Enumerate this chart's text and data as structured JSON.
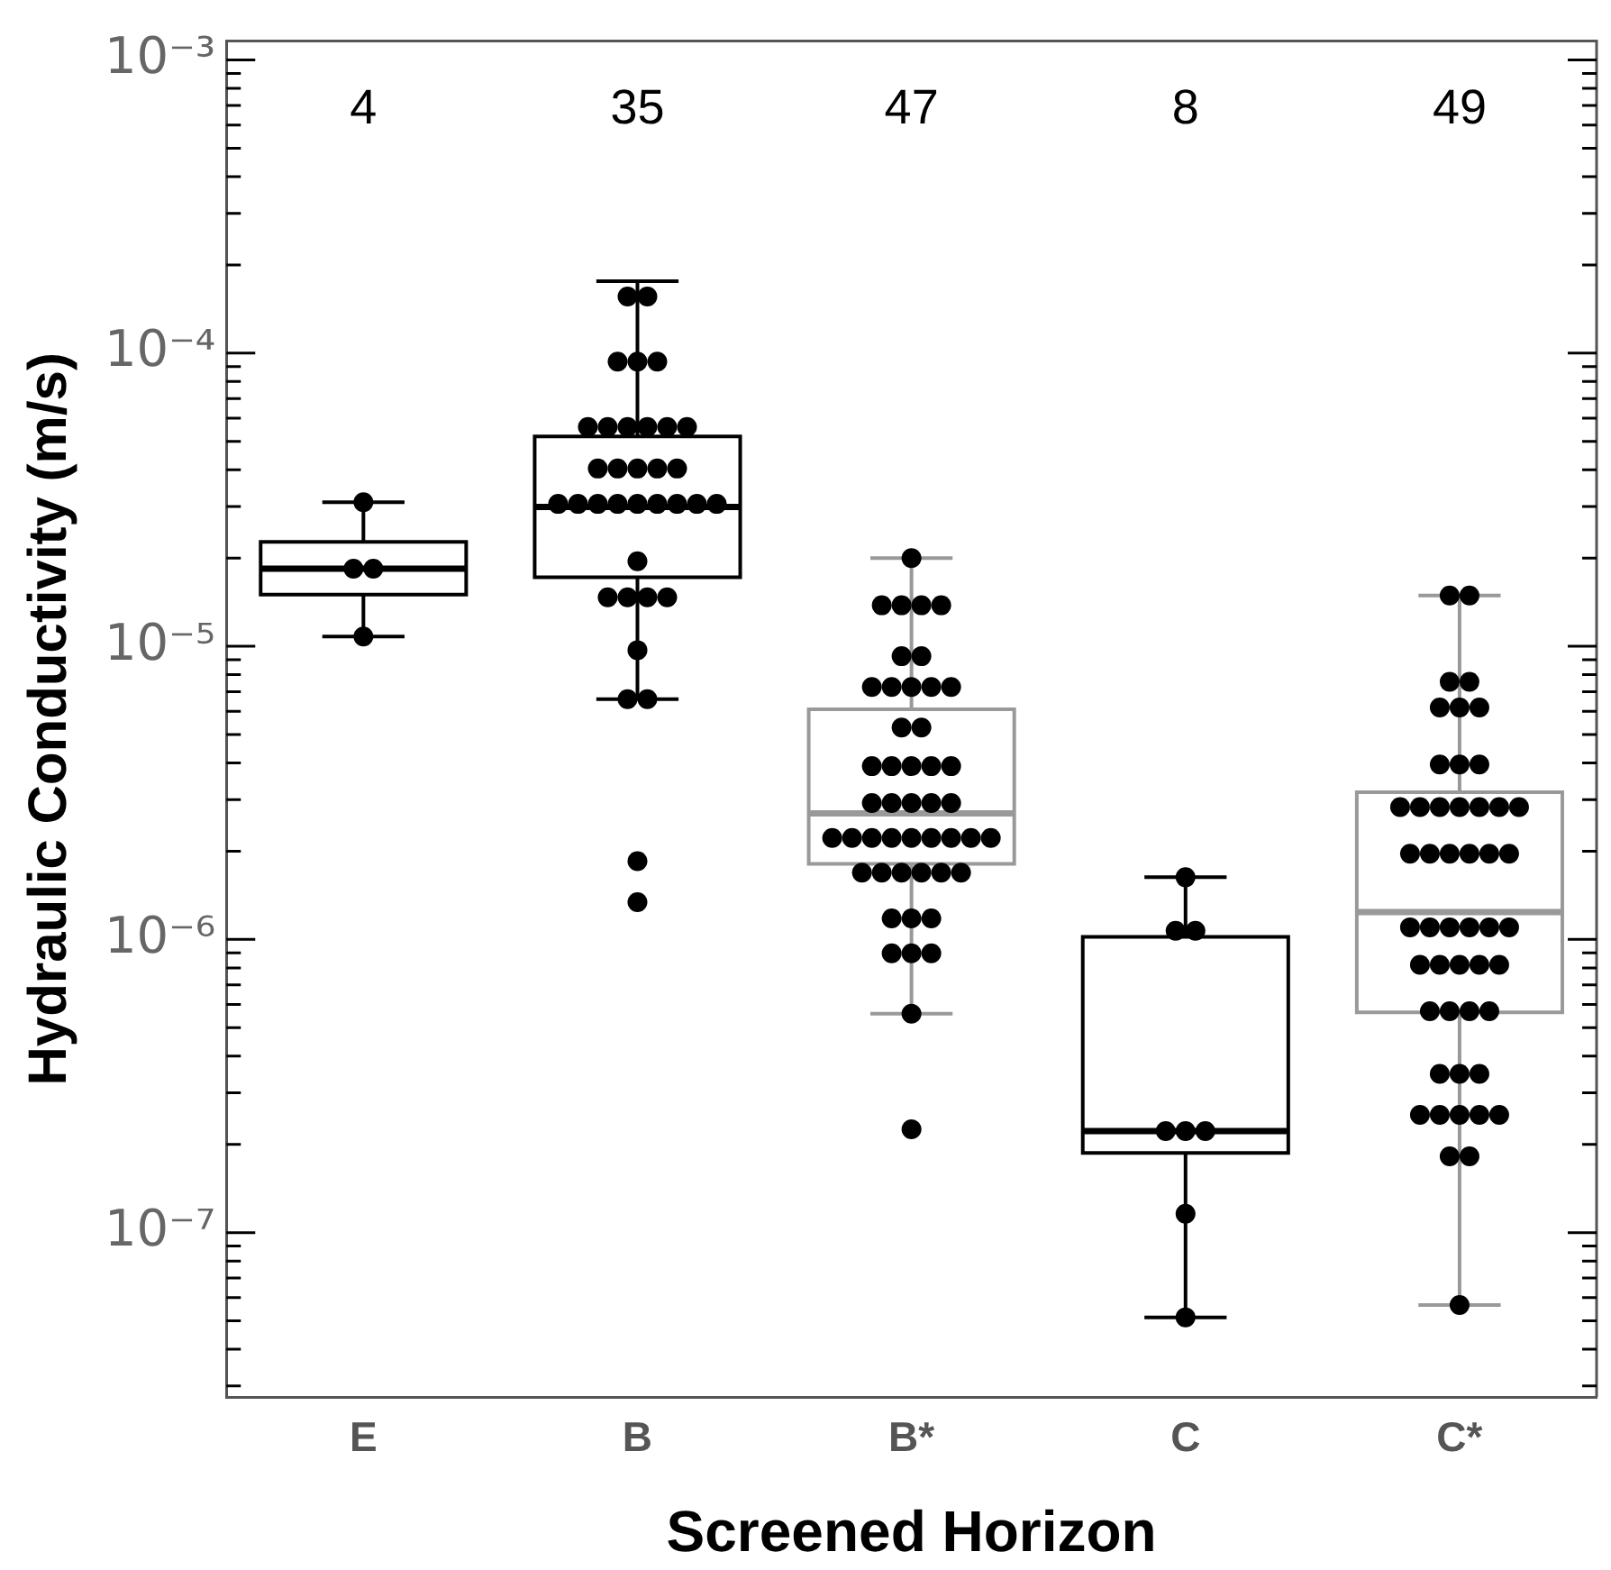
{
  "chart_data": {
    "type": "box",
    "xlabel": "Screened Horizon",
    "ylabel": "Hydraulic Conductivity (m/s)",
    "categories": [
      "E",
      "B",
      "B*",
      "C",
      "C*"
    ],
    "log": true,
    "ylim": [
      2.75e-08,
      0.00116
    ],
    "yticks": [
      {
        "value": 3e-08,
        "label": null
      },
      {
        "value": 4e-08,
        "label": null
      },
      {
        "value": 5e-08,
        "label": null
      },
      {
        "value": 6e-08,
        "label": null
      },
      {
        "value": 7e-08,
        "label": null
      },
      {
        "value": 8e-08,
        "label": null
      },
      {
        "value": 9e-08,
        "label": null
      },
      {
        "value": 1e-07,
        "label": "10⁻⁷"
      },
      {
        "value": 2e-07,
        "label": null
      },
      {
        "value": 3e-07,
        "label": null
      },
      {
        "value": 4e-07,
        "label": null
      },
      {
        "value": 5e-07,
        "label": null
      },
      {
        "value": 6e-07,
        "label": null
      },
      {
        "value": 7e-07,
        "label": null
      },
      {
        "value": 8e-07,
        "label": null
      },
      {
        "value": 9e-07,
        "label": null
      },
      {
        "value": 1e-06,
        "label": "10⁻⁶"
      },
      {
        "value": 2e-06,
        "label": null
      },
      {
        "value": 3e-06,
        "label": null
      },
      {
        "value": 4e-06,
        "label": null
      },
      {
        "value": 5e-06,
        "label": null
      },
      {
        "value": 6e-06,
        "label": null
      },
      {
        "value": 7e-06,
        "label": null
      },
      {
        "value": 8e-06,
        "label": null
      },
      {
        "value": 9e-06,
        "label": null
      },
      {
        "value": 1e-05,
        "label": "10⁻⁵"
      },
      {
        "value": 2e-05,
        "label": null
      },
      {
        "value": 3e-05,
        "label": null
      },
      {
        "value": 4e-05,
        "label": null
      },
      {
        "value": 5e-05,
        "label": null
      },
      {
        "value": 6e-05,
        "label": null
      },
      {
        "value": 7e-05,
        "label": null
      },
      {
        "value": 8e-05,
        "label": null
      },
      {
        "value": 9e-05,
        "label": null
      },
      {
        "value": 0.0001,
        "label": "10⁻⁴"
      },
      {
        "value": 0.0002,
        "label": null
      },
      {
        "value": 0.0003,
        "label": null
      },
      {
        "value": 0.0004,
        "label": null
      },
      {
        "value": 0.0005,
        "label": null
      },
      {
        "value": 0.0006,
        "label": null
      },
      {
        "value": 0.0007,
        "label": null
      },
      {
        "value": 0.0008,
        "label": null
      },
      {
        "value": 0.0009,
        "label": null
      },
      {
        "value": 0.001,
        "label": "10⁻³"
      }
    ],
    "series": [
      {
        "type": "box",
        "colors": [
          "#000000",
          "#000000",
          "#999999",
          "#000000",
          "#999999"
        ],
        "boxes": [
          {
            "low": 1.08e-05,
            "q1": 1.5e-05,
            "median": 1.84e-05,
            "q3": 2.27e-05,
            "high": 3.1e-05
          },
          {
            "low": 6.6e-06,
            "q1": 1.72e-05,
            "median": 2.99e-05,
            "q3": 5.2e-05,
            "high": 0.000176
          },
          {
            "low": 5.58e-07,
            "q1": 1.81e-06,
            "median": 2.69e-06,
            "q3": 6.1e-06,
            "high": 2e-05
          },
          {
            "low": 5.14e-08,
            "q1": 1.87e-07,
            "median": 2.22e-07,
            "q3": 1.02e-06,
            "high": 1.63e-06
          },
          {
            "low": 5.66e-08,
            "q1": 5.64e-07,
            "median": 1.24e-06,
            "q3": 3.18e-06,
            "high": 1.49e-05
          }
        ]
      },
      {
        "type": "scatter",
        "color": "#000000",
        "marker": "circle",
        "x": [
          "E",
          "E",
          "E",
          "E",
          "B",
          "B",
          "B",
          "B",
          "B",
          "B",
          "B",
          "B",
          "B",
          "B",
          "B",
          "B",
          "B",
          "B",
          "B",
          "B",
          "B",
          "B",
          "B",
          "B",
          "B",
          "B",
          "B",
          "B",
          "B",
          "B",
          "B",
          "B",
          "B",
          "B",
          "B",
          "B",
          "B",
          "B",
          "B",
          "B*",
          "B*",
          "B*",
          "B*",
          "B*",
          "B*",
          "B*",
          "B*",
          "B*",
          "B*",
          "B*",
          "B*",
          "B*",
          "B*",
          "B*",
          "B*",
          "B*",
          "B*",
          "B*",
          "B*",
          "B*",
          "B*",
          "B*",
          "B*",
          "B*",
          "B*",
          "B*",
          "B*",
          "B*",
          "B*",
          "B*",
          "B*",
          "B*",
          "B*",
          "B*",
          "B*",
          "B*",
          "B*",
          "B*",
          "B*",
          "B*",
          "B*",
          "B*",
          "B*",
          "B*",
          "B*",
          "B*",
          "C",
          "C",
          "C",
          "C",
          "C",
          "C",
          "C",
          "C",
          "C*",
          "C*",
          "C*",
          "C*",
          "C*",
          "C*",
          "C*",
          "C*",
          "C*",
          "C*",
          "C*",
          "C*",
          "C*",
          "C*",
          "C*",
          "C*",
          "C*",
          "C*",
          "C*",
          "C*",
          "C*",
          "C*",
          "C*",
          "C*",
          "C*",
          "C*",
          "C*",
          "C*",
          "C*",
          "C*",
          "C*",
          "C*",
          "C*",
          "C*",
          "C*",
          "C*",
          "C*",
          "C*",
          "C*",
          "C*",
          "C*",
          "C*",
          "C*",
          "C*",
          "C*",
          "C*",
          "C*",
          "C*",
          "C*"
        ],
        "values": [
          3.1e-05,
          1.84e-05,
          1.84e-05,
          1.08e-05,
          0.000156,
          0.000156,
          9.35e-05,
          9.35e-05,
          9.35e-05,
          5.6e-05,
          5.6e-05,
          5.6e-05,
          5.6e-05,
          5.6e-05,
          5.6e-05,
          4.04e-05,
          4.04e-05,
          4.04e-05,
          4.04e-05,
          4.04e-05,
          3.06e-05,
          3.06e-05,
          3.06e-05,
          3.06e-05,
          3.06e-05,
          3.06e-05,
          3.06e-05,
          3.06e-05,
          3.06e-05,
          1.95e-05,
          1.47e-05,
          1.47e-05,
          1.47e-05,
          1.47e-05,
          9.7e-06,
          6.6e-06,
          6.6e-06,
          1.85e-06,
          1.34e-06,
          2e-05,
          1.38e-05,
          1.38e-05,
          1.38e-05,
          1.38e-05,
          9.25e-06,
          9.25e-06,
          7.26e-06,
          7.26e-06,
          7.26e-06,
          7.26e-06,
          7.26e-06,
          5.28e-06,
          5.28e-06,
          3.9e-06,
          3.9e-06,
          3.9e-06,
          3.9e-06,
          3.9e-06,
          2.92e-06,
          2.92e-06,
          2.92e-06,
          2.92e-06,
          2.92e-06,
          2.22e-06,
          2.22e-06,
          2.22e-06,
          2.22e-06,
          2.22e-06,
          2.22e-06,
          2.22e-06,
          2.22e-06,
          2.22e-06,
          1.69e-06,
          1.69e-06,
          1.69e-06,
          1.69e-06,
          1.69e-06,
          1.69e-06,
          1.18e-06,
          1.18e-06,
          1.18e-06,
          8.97e-07,
          8.97e-07,
          8.97e-07,
          5.58e-07,
          2.25e-07,
          1.63e-06,
          1.07e-06,
          1.07e-06,
          2.22e-07,
          2.22e-07,
          2.22e-07,
          1.16e-07,
          5.14e-08,
          1.49e-05,
          1.49e-05,
          7.57e-06,
          7.57e-06,
          6.18e-06,
          6.18e-06,
          6.18e-06,
          3.95e-06,
          3.95e-06,
          3.95e-06,
          2.83e-06,
          2.83e-06,
          2.83e-06,
          2.83e-06,
          2.83e-06,
          2.83e-06,
          2.83e-06,
          1.96e-06,
          1.96e-06,
          1.96e-06,
          1.96e-06,
          1.96e-06,
          1.96e-06,
          1.1e-06,
          1.1e-06,
          1.1e-06,
          1.1e-06,
          1.1e-06,
          1.1e-06,
          8.19e-07,
          8.19e-07,
          8.19e-07,
          8.19e-07,
          8.19e-07,
          5.69e-07,
          5.69e-07,
          5.69e-07,
          5.69e-07,
          3.48e-07,
          3.48e-07,
          3.48e-07,
          2.52e-07,
          2.52e-07,
          2.52e-07,
          2.52e-07,
          2.52e-07,
          1.82e-07,
          1.82e-07,
          5.66e-08
        ]
      }
    ],
    "annotations": [
      "4",
      "35",
      "47",
      "8",
      "49"
    ]
  }
}
